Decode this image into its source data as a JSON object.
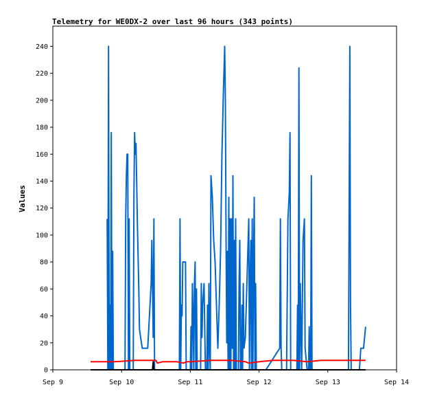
{
  "chart_data": {
    "type": "line",
    "title": "Telemetry for WE0DX-2 over last 96 hours (343 points)",
    "xlabel": "",
    "ylabel": "Values",
    "xlim": [
      "Sep 9",
      "Sep 14"
    ],
    "ylim": [
      0,
      255
    ],
    "grid": false,
    "x_ticks": [
      {
        "label": "Sep 9",
        "value": 0
      },
      {
        "label": "Sep 10",
        "value": 1
      },
      {
        "label": "Sep 11",
        "value": 2
      },
      {
        "label": "Sep 12",
        "value": 3
      },
      {
        "label": "Sep 13",
        "value": 4
      },
      {
        "label": "Sep 14",
        "value": 5
      }
    ],
    "y_ticks": [
      0,
      20,
      40,
      60,
      80,
      100,
      120,
      140,
      160,
      180,
      200,
      220,
      240
    ],
    "series": [
      {
        "color": "#0066cc",
        "points": [
          [
            0.79,
            112
          ],
          [
            0.8,
            0
          ],
          [
            0.81,
            240
          ],
          [
            0.82,
            0
          ],
          [
            0.83,
            48
          ],
          [
            0.84,
            0
          ],
          [
            0.85,
            176
          ],
          [
            0.86,
            0
          ],
          [
            0.87,
            88
          ],
          [
            0.88,
            0
          ],
          [
            1.05,
            0
          ],
          [
            1.06,
            112
          ],
          [
            1.07,
            144
          ],
          [
            1.08,
            160
          ],
          [
            1.09,
            160
          ],
          [
            1.1,
            0
          ],
          [
            1.11,
            112
          ],
          [
            1.12,
            0
          ],
          [
            1.17,
            0
          ],
          [
            1.18,
            130
          ],
          [
            1.19,
            176
          ],
          [
            1.2,
            160
          ],
          [
            1.21,
            168
          ],
          [
            1.22,
            140
          ],
          [
            1.23,
            110
          ],
          [
            1.25,
            60
          ],
          [
            1.26,
            30
          ],
          [
            1.3,
            16
          ],
          [
            1.38,
            16
          ],
          [
            1.43,
            64
          ],
          [
            1.44,
            96
          ],
          [
            1.45,
            60
          ],
          [
            1.46,
            24
          ],
          [
            1.47,
            112
          ],
          [
            1.48,
            0
          ],
          [
            1.84,
            0
          ],
          [
            1.85,
            112
          ],
          [
            1.86,
            0
          ],
          [
            1.87,
            48
          ],
          [
            1.88,
            40
          ],
          [
            1.89,
            80
          ],
          [
            1.93,
            80
          ],
          [
            1.94,
            0
          ],
          [
            2.0,
            0
          ],
          [
            2.01,
            32
          ],
          [
            2.02,
            0
          ],
          [
            2.03,
            64
          ],
          [
            2.04,
            40
          ],
          [
            2.05,
            0
          ],
          [
            2.06,
            64
          ],
          [
            2.07,
            80
          ],
          [
            2.08,
            0
          ],
          [
            2.09,
            60
          ],
          [
            2.1,
            0
          ],
          [
            2.15,
            0
          ],
          [
            2.16,
            64
          ],
          [
            2.17,
            24
          ],
          [
            2.18,
            48
          ],
          [
            2.2,
            64
          ],
          [
            2.22,
            0
          ],
          [
            2.24,
            0
          ],
          [
            2.25,
            48
          ],
          [
            2.26,
            0
          ],
          [
            2.27,
            64
          ],
          [
            2.28,
            16
          ],
          [
            2.29,
            0
          ],
          [
            2.3,
            144
          ],
          [
            2.32,
            128
          ],
          [
            2.34,
            96
          ],
          [
            2.36,
            80
          ],
          [
            2.38,
            48
          ],
          [
            2.4,
            16
          ],
          [
            2.42,
            48
          ],
          [
            2.44,
            88
          ],
          [
            2.46,
            160
          ],
          [
            2.48,
            204
          ],
          [
            2.5,
            240
          ],
          [
            2.51,
            200
          ],
          [
            2.52,
            96
          ],
          [
            2.53,
            20
          ],
          [
            2.54,
            88
          ],
          [
            2.55,
            0
          ],
          [
            2.56,
            128
          ],
          [
            2.57,
            0
          ],
          [
            2.58,
            112
          ],
          [
            2.59,
            0
          ],
          [
            2.6,
            112
          ],
          [
            2.61,
            16
          ],
          [
            2.62,
            144
          ],
          [
            2.63,
            0
          ],
          [
            2.64,
            96
          ],
          [
            2.65,
            0
          ],
          [
            2.66,
            112
          ],
          [
            2.67,
            0
          ],
          [
            2.7,
            0
          ],
          [
            2.71,
            64
          ],
          [
            2.72,
            96
          ],
          [
            2.73,
            0
          ],
          [
            2.74,
            0
          ],
          [
            2.75,
            48
          ],
          [
            2.76,
            0
          ],
          [
            2.77,
            64
          ],
          [
            2.78,
            16
          ],
          [
            2.8,
            24
          ],
          [
            2.85,
            112
          ],
          [
            2.86,
            0
          ],
          [
            2.87,
            64
          ],
          [
            2.88,
            96
          ],
          [
            2.89,
            0
          ],
          [
            2.9,
            112
          ],
          [
            2.91,
            0
          ],
          [
            2.92,
            84
          ],
          [
            2.93,
            128
          ],
          [
            2.94,
            0
          ],
          [
            2.95,
            64
          ],
          [
            2.96,
            0
          ],
          [
            3.1,
            0
          ],
          [
            3.3,
            16
          ],
          [
            3.31,
            112
          ],
          [
            3.32,
            16
          ],
          [
            3.33,
            0
          ],
          [
            3.34,
            0
          ],
          [
            3.4,
            0
          ],
          [
            3.42,
            112
          ],
          [
            3.44,
            132
          ],
          [
            3.45,
            176
          ],
          [
            3.46,
            0
          ],
          [
            3.55,
            0
          ],
          [
            3.56,
            48
          ],
          [
            3.57,
            0
          ],
          [
            3.58,
            224
          ],
          [
            3.59,
            0
          ],
          [
            3.6,
            64
          ],
          [
            3.62,
            0
          ],
          [
            3.64,
            96
          ],
          [
            3.66,
            112
          ],
          [
            3.67,
            16
          ],
          [
            3.7,
            0
          ],
          [
            3.72,
            0
          ],
          [
            3.73,
            32
          ],
          [
            3.74,
            0
          ],
          [
            3.75,
            0
          ],
          [
            3.76,
            144
          ],
          [
            3.77,
            0
          ],
          [
            4.3,
            0
          ],
          [
            4.32,
            240
          ],
          [
            4.33,
            48
          ],
          [
            4.34,
            0
          ],
          [
            4.46,
            0
          ],
          [
            4.48,
            16
          ],
          [
            4.52,
            16
          ],
          [
            4.55,
            32
          ]
        ]
      },
      {
        "color": "#ff0000",
        "points": [
          [
            0.55,
            6
          ],
          [
            0.9,
            6
          ],
          [
            1.2,
            7
          ],
          [
            1.5,
            7
          ],
          [
            1.52,
            5
          ],
          [
            1.6,
            6
          ],
          [
            1.8,
            6
          ],
          [
            1.9,
            5
          ],
          [
            1.95,
            6
          ],
          [
            2.0,
            6
          ],
          [
            2.3,
            7
          ],
          [
            2.6,
            7
          ],
          [
            2.8,
            6
          ],
          [
            2.85,
            5
          ],
          [
            3.0,
            6
          ],
          [
            3.2,
            7
          ],
          [
            3.5,
            7
          ],
          [
            3.7,
            6
          ],
          [
            3.9,
            7
          ],
          [
            4.2,
            7
          ],
          [
            4.55,
            7
          ]
        ]
      },
      {
        "color": "#000000",
        "points": [
          [
            0.55,
            0
          ],
          [
            1.2,
            0
          ],
          [
            1.45,
            0
          ],
          [
            1.46,
            6
          ],
          [
            1.47,
            0
          ],
          [
            2.0,
            0
          ],
          [
            3.0,
            0
          ],
          [
            4.0,
            0
          ],
          [
            4.55,
            0
          ]
        ]
      }
    ]
  }
}
